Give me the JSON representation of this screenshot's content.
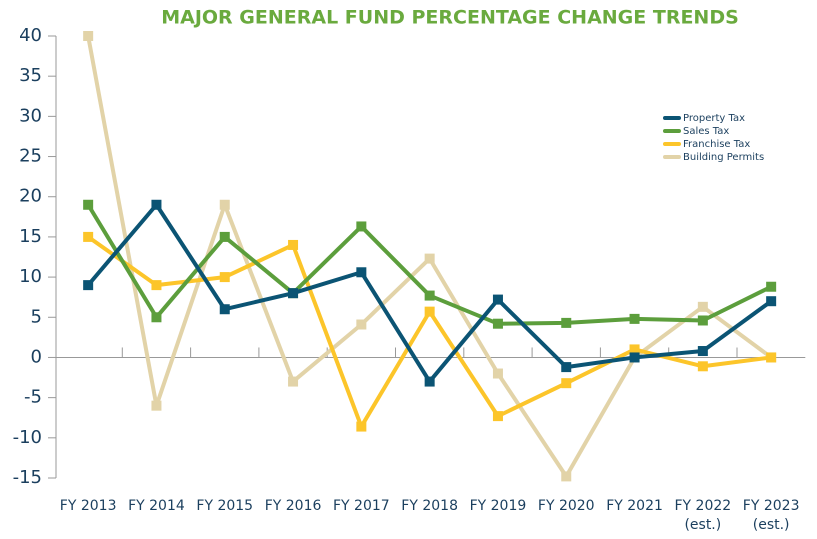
{
  "chart_data": {
    "type": "line",
    "title": "MAJOR GENERAL FUND PERCENTAGE CHANGE TRENDS",
    "categories": [
      "FY 2013",
      "FY 2014",
      "FY 2015",
      "FY 2016",
      "FY 2017",
      "FY 2018",
      "FY 2019",
      "FY 2020",
      "FY 2021",
      "FY 2022\n(est.)",
      "FY 2023\n(est.)"
    ],
    "series": [
      {
        "name": "Property Tax",
        "color": "#0b5474",
        "values": [
          9,
          19,
          6,
          8,
          10.6,
          -3,
          7.2,
          -1.2,
          0,
          0.8,
          7
        ]
      },
      {
        "name": "Sales Tax",
        "color": "#5c9e3c",
        "values": [
          19,
          5,
          15,
          8,
          16.3,
          7.7,
          4.2,
          4.3,
          4.8,
          4.6,
          8.8
        ]
      },
      {
        "name": "Franchise Tax",
        "color": "#fcc52a",
        "values": [
          15,
          9,
          10,
          14,
          -8.6,
          5.7,
          -7.3,
          -3.2,
          1,
          -1.1,
          0
        ]
      },
      {
        "name": "Building Permits",
        "color": "#e2d3a8",
        "values": [
          40,
          -6,
          19,
          -3,
          4.1,
          12.3,
          -2,
          -14.8,
          0,
          6.3,
          0
        ]
      }
    ],
    "ylim": [
      -15,
      40
    ],
    "yticks": [
      -15,
      -10,
      -5,
      0,
      5,
      10,
      15,
      20,
      25,
      30,
      35,
      40
    ],
    "grid": false,
    "legend": "upper right"
  }
}
